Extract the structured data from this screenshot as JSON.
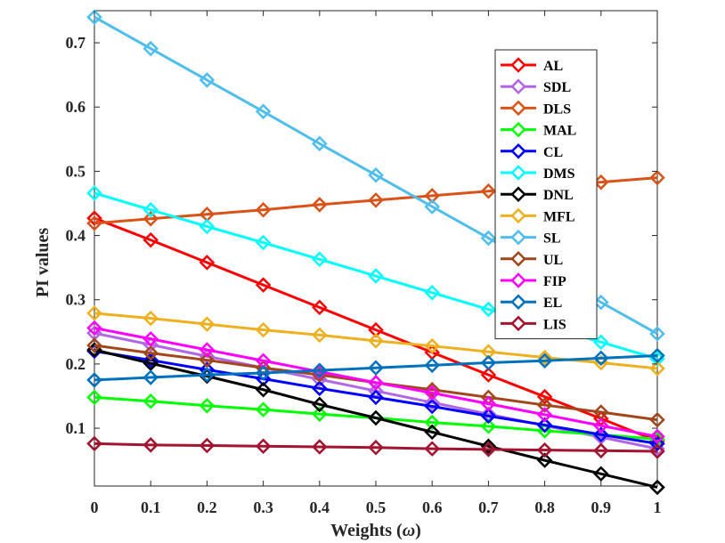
{
  "chart_data": {
    "type": "line",
    "title": "",
    "xlabel": "Weights (ω)",
    "xlabel_main": "Weights (",
    "xlabel_symbol": "ω",
    "xlabel_close": ")",
    "ylabel": "PI values",
    "xlim": [
      0,
      1
    ],
    "ylim": [
      0.01,
      0.75
    ],
    "x": [
      0,
      0.1,
      0.2,
      0.3,
      0.4,
      0.5,
      0.6,
      0.7,
      0.8,
      0.9,
      1
    ],
    "x_tick_labels": [
      "0",
      "0.1",
      "0.2",
      "0.3",
      "0.4",
      "0.5",
      "0.6",
      "0.7",
      "0.8",
      "0.9",
      "1"
    ],
    "y_ticks": [
      0.1,
      0.2,
      0.3,
      0.4,
      0.5,
      0.6,
      0.7
    ],
    "y_tick_labels": [
      "0.1",
      "0.2",
      "0.3",
      "0.4",
      "0.5",
      "0.6",
      "0.7"
    ],
    "grid": false,
    "legend_position": "top-right",
    "series": [
      {
        "name": "AL",
        "color": "#ff0000",
        "values": [
          0.427,
          0.393,
          0.358,
          0.323,
          0.288,
          0.253,
          0.218,
          0.183,
          0.149,
          0.115,
          0.08
        ]
      },
      {
        "name": "SDL",
        "color": "#b266e6",
        "values": [
          0.248,
          0.23,
          0.212,
          0.194,
          0.176,
          0.158,
          0.14,
          0.122,
          0.104,
          0.086,
          0.068
        ]
      },
      {
        "name": "DLS",
        "color": "#d95319",
        "values": [
          0.419,
          0.426,
          0.433,
          0.44,
          0.448,
          0.455,
          0.462,
          0.469,
          0.476,
          0.483,
          0.49
        ]
      },
      {
        "name": "MAL",
        "color": "#00ff00",
        "values": [
          0.148,
          0.142,
          0.135,
          0.129,
          0.122,
          0.116,
          0.109,
          0.103,
          0.096,
          0.09,
          0.083
        ]
      },
      {
        "name": "CL",
        "color": "#0000ff",
        "values": [
          0.22,
          0.206,
          0.191,
          0.177,
          0.162,
          0.148,
          0.134,
          0.119,
          0.105,
          0.09,
          0.076
        ]
      },
      {
        "name": "DMS",
        "color": "#00ffff",
        "values": [
          0.466,
          0.44,
          0.414,
          0.389,
          0.363,
          0.337,
          0.311,
          0.285,
          0.259,
          0.234,
          0.208
        ]
      },
      {
        "name": "DNL",
        "color": "#000000",
        "values": [
          0.222,
          0.201,
          0.181,
          0.16,
          0.137,
          0.116,
          0.094,
          0.072,
          0.05,
          0.029,
          0.008
        ]
      },
      {
        "name": "MFL",
        "color": "#edb120",
        "values": [
          0.279,
          0.271,
          0.262,
          0.253,
          0.245,
          0.236,
          0.228,
          0.219,
          0.21,
          0.202,
          0.193
        ]
      },
      {
        "name": "SL",
        "color": "#4dbeee",
        "values": [
          0.74,
          0.691,
          0.642,
          0.593,
          0.543,
          0.494,
          0.445,
          0.396,
          0.346,
          0.296,
          0.247
        ]
      },
      {
        "name": "UL",
        "color": "#a2471c",
        "values": [
          0.229,
          0.217,
          0.206,
          0.194,
          0.183,
          0.171,
          0.16,
          0.148,
          0.136,
          0.125,
          0.113
        ]
      },
      {
        "name": "FIP",
        "color": "#ff00ff",
        "values": [
          0.256,
          0.239,
          0.222,
          0.205,
          0.188,
          0.171,
          0.155,
          0.138,
          0.121,
          0.104,
          0.087
        ]
      },
      {
        "name": "EL",
        "color": "#0072bd",
        "values": [
          0.175,
          0.179,
          0.183,
          0.186,
          0.19,
          0.194,
          0.198,
          0.202,
          0.205,
          0.209,
          0.213
        ]
      },
      {
        "name": "LIS",
        "color": "#a2142f",
        "values": [
          0.076,
          0.074,
          0.073,
          0.072,
          0.071,
          0.07,
          0.068,
          0.067,
          0.066,
          0.065,
          0.064
        ]
      }
    ]
  }
}
